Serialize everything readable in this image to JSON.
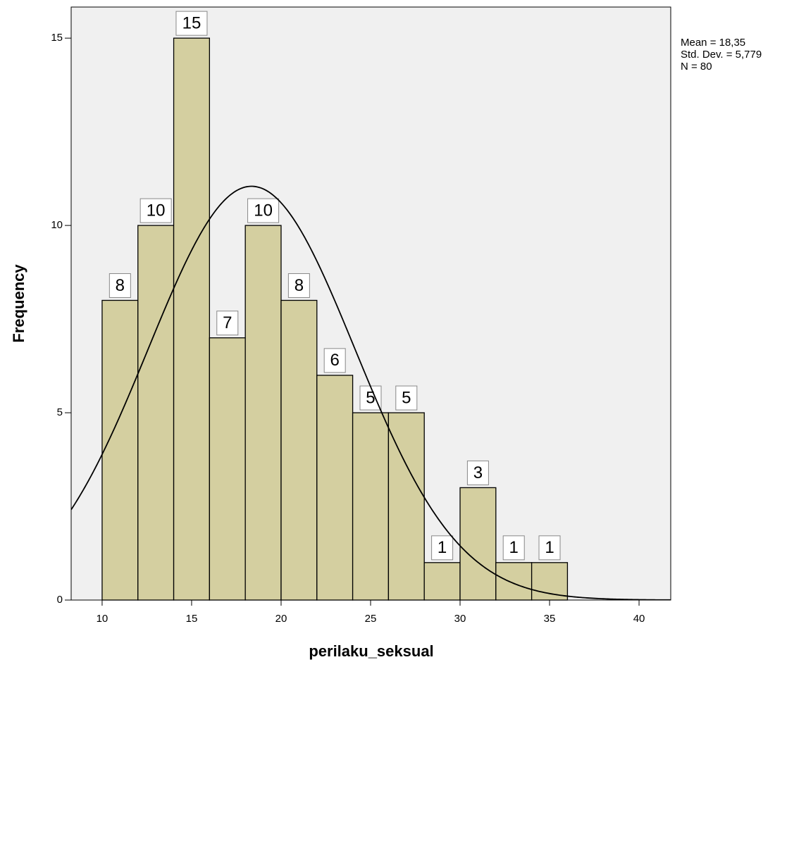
{
  "chart_data": {
    "type": "histogram",
    "x_label": "perilaku_seksual",
    "y_label": "Frequency",
    "bins": [
      10,
      12,
      14,
      16,
      18,
      20,
      22,
      24,
      26,
      28,
      30,
      32,
      34,
      36
    ],
    "values": [
      8,
      10,
      15,
      7,
      10,
      8,
      6,
      5,
      5,
      1,
      3,
      1,
      1
    ],
    "color": "#d4cfa0",
    "background": "#f0f0f0",
    "xlim": [
      8.27,
      41.77
    ],
    "ylim": [
      0,
      15.83
    ],
    "xticks": [
      10,
      15,
      20,
      25,
      30,
      35,
      40
    ],
    "yticks": [
      0,
      5,
      10,
      15
    ],
    "mean": {
      "value": 18.35,
      "label": "Mean = 18,35"
    },
    "std_dev": {
      "value": 5.779,
      "label": "Std. Dev. = 5,779"
    },
    "n": {
      "value": 80,
      "label": "N = 80"
    }
  }
}
